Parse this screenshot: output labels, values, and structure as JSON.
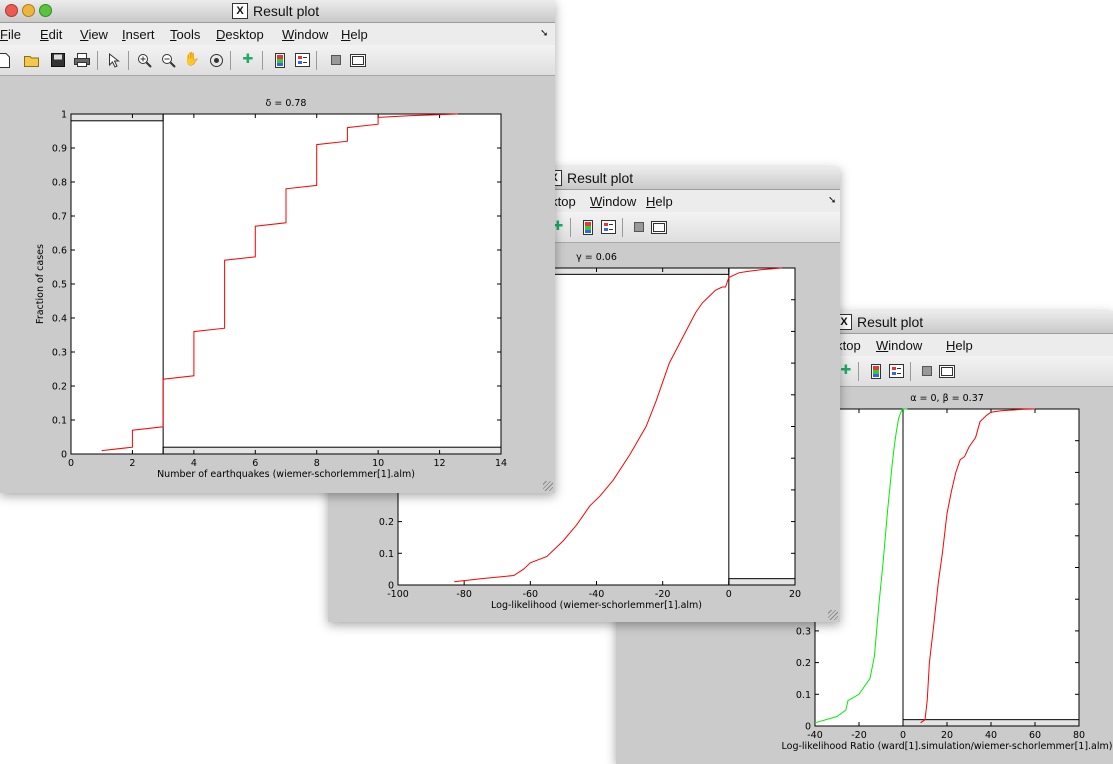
{
  "colors": {
    "red": "#ff0000",
    "green": "#00ee00"
  },
  "windows": [
    {
      "title": "Result plot",
      "menu": [
        "File",
        "Edit",
        "View",
        "Insert",
        "Tools",
        "Desktop",
        "Window",
        "Help"
      ],
      "toolbar_icons": [
        "new-file-icon",
        "open-folder-icon",
        "save-icon",
        "print-icon",
        "pointer-icon",
        "zoom-in-icon",
        "zoom-out-icon",
        "pan-hand-icon",
        "rotate-3d-icon",
        "data-cursor-icon",
        "colorbar-icon",
        "legend-icon",
        "hide-plot-tools-icon",
        "show-plot-tools-icon"
      ],
      "chart_data": {
        "type": "line",
        "title": "δ = 0.78",
        "xlabel": "Number of earthquakes (wiemer-schorlemmer[1].alm)",
        "ylabel": "Fraction of cases",
        "xlim": [
          0,
          14
        ],
        "ylim": [
          0,
          1
        ],
        "xticks": [
          "0",
          "2",
          "4",
          "6",
          "8",
          "10",
          "12",
          "14"
        ],
        "yticks": [
          "0",
          "0.1",
          "0.2",
          "0.3",
          "0.4",
          "0.5",
          "0.6",
          "0.7",
          "0.8",
          "0.9",
          "1"
        ],
        "threshold_x": 3,
        "band_top": 0.98,
        "band_bottom": 0.02,
        "series": [
          {
            "color": "#ff0000",
            "x": [
              1,
              2,
              2,
              3,
              3,
              4,
              4,
              5,
              5,
              6,
              6,
              7,
              7,
              8,
              8,
              9,
              9,
              10,
              10,
              11,
              12.6
            ],
            "y": [
              0.01,
              0.02,
              0.07,
              0.08,
              0.22,
              0.23,
              0.36,
              0.37,
              0.57,
              0.58,
              0.67,
              0.68,
              0.78,
              0.79,
              0.91,
              0.92,
              0.96,
              0.97,
              0.99,
              0.995,
              1.0
            ]
          }
        ]
      }
    },
    {
      "title": "Result plot",
      "menu": [
        "Desktop",
        "Window",
        "Help"
      ],
      "toolbar_icons": [
        "data-cursor-icon",
        "colorbar-icon",
        "legend-icon",
        "hide-plot-tools-icon",
        "show-plot-tools-icon"
      ],
      "chart_data": {
        "type": "line",
        "title": "γ = 0.06",
        "xlabel": "Log-likelihood (wiemer-schorlemmer[1].alm)",
        "ylabel": "",
        "xlim": [
          -100,
          20
        ],
        "ylim": [
          0,
          1
        ],
        "xticks": [
          "-100",
          "-80",
          "-60",
          "-40",
          "-20",
          "0",
          "20"
        ],
        "yticks": [
          "0",
          "0.1",
          "0.2"
        ],
        "threshold_x": 0,
        "band_top": 0.98,
        "band_bottom": 0.02,
        "series": [
          {
            "color": "#ff0000",
            "x": [
              -83,
              -75,
              -65,
              -62,
              -60,
              -55,
              -50,
              -46,
              -42,
              -39,
              -35,
              -30,
              -25,
              -22,
              -20,
              -18,
              -15,
              -12,
              -10,
              -8,
              -6,
              -4,
              -2,
              -1,
              0,
              3,
              6,
              10,
              16
            ],
            "y": [
              0.01,
              0.02,
              0.03,
              0.05,
              0.07,
              0.09,
              0.14,
              0.19,
              0.25,
              0.28,
              0.33,
              0.41,
              0.5,
              0.58,
              0.64,
              0.7,
              0.76,
              0.82,
              0.86,
              0.89,
              0.91,
              0.93,
              0.94,
              0.94,
              0.97,
              0.985,
              0.99,
              0.995,
              1.0
            ]
          }
        ]
      }
    },
    {
      "title": "Result plot",
      "menu": [
        "Desktop",
        "Window",
        "Help"
      ],
      "toolbar_icons": [
        "data-cursor-icon",
        "colorbar-icon",
        "legend-icon",
        "hide-plot-tools-icon",
        "show-plot-tools-icon"
      ],
      "chart_data": {
        "type": "line",
        "title": "α = 0, β = 0.37",
        "xlabel": "Log-likelihood Ratio (ward[1].simulation/wiemer-schorlemmer[1].alm)",
        "ylabel": "",
        "xlim": [
          -40,
          80
        ],
        "ylim": [
          0,
          1
        ],
        "xticks": [
          "-40",
          "-20",
          "0",
          "20",
          "40",
          "60",
          "80"
        ],
        "yticks": [
          "0",
          "0.1",
          "0.2",
          "0.3"
        ],
        "threshold_x": 0,
        "band_bottom": 0.02,
        "series": [
          {
            "color": "#00ee00",
            "x": [
              -40,
              -30,
              -26,
              -25,
              -20,
              -15,
              -13,
              -12,
              -11,
              -10,
              -9,
              -8,
              -7,
              -6,
              -5,
              -4,
              -3,
              -2,
              -1,
              0,
              1,
              2
            ],
            "y": [
              0.01,
              0.03,
              0.05,
              0.08,
              0.1,
              0.15,
              0.22,
              0.3,
              0.38,
              0.45,
              0.52,
              0.6,
              0.68,
              0.75,
              0.82,
              0.88,
              0.93,
              0.97,
              0.99,
              1.0,
              1.0,
              1.0
            ]
          },
          {
            "color": "#ff0000",
            "x": [
              8,
              10,
              11,
              12,
              14,
              16,
              18,
              20,
              22,
              24,
              26,
              28,
              30,
              33,
              35,
              38,
              40,
              45,
              50,
              55,
              60
            ],
            "y": [
              0.01,
              0.02,
              0.08,
              0.2,
              0.32,
              0.45,
              0.55,
              0.67,
              0.74,
              0.8,
              0.84,
              0.85,
              0.88,
              0.91,
              0.96,
              0.98,
              0.99,
              0.995,
              0.997,
              0.999,
              1.0
            ]
          }
        ]
      }
    }
  ]
}
